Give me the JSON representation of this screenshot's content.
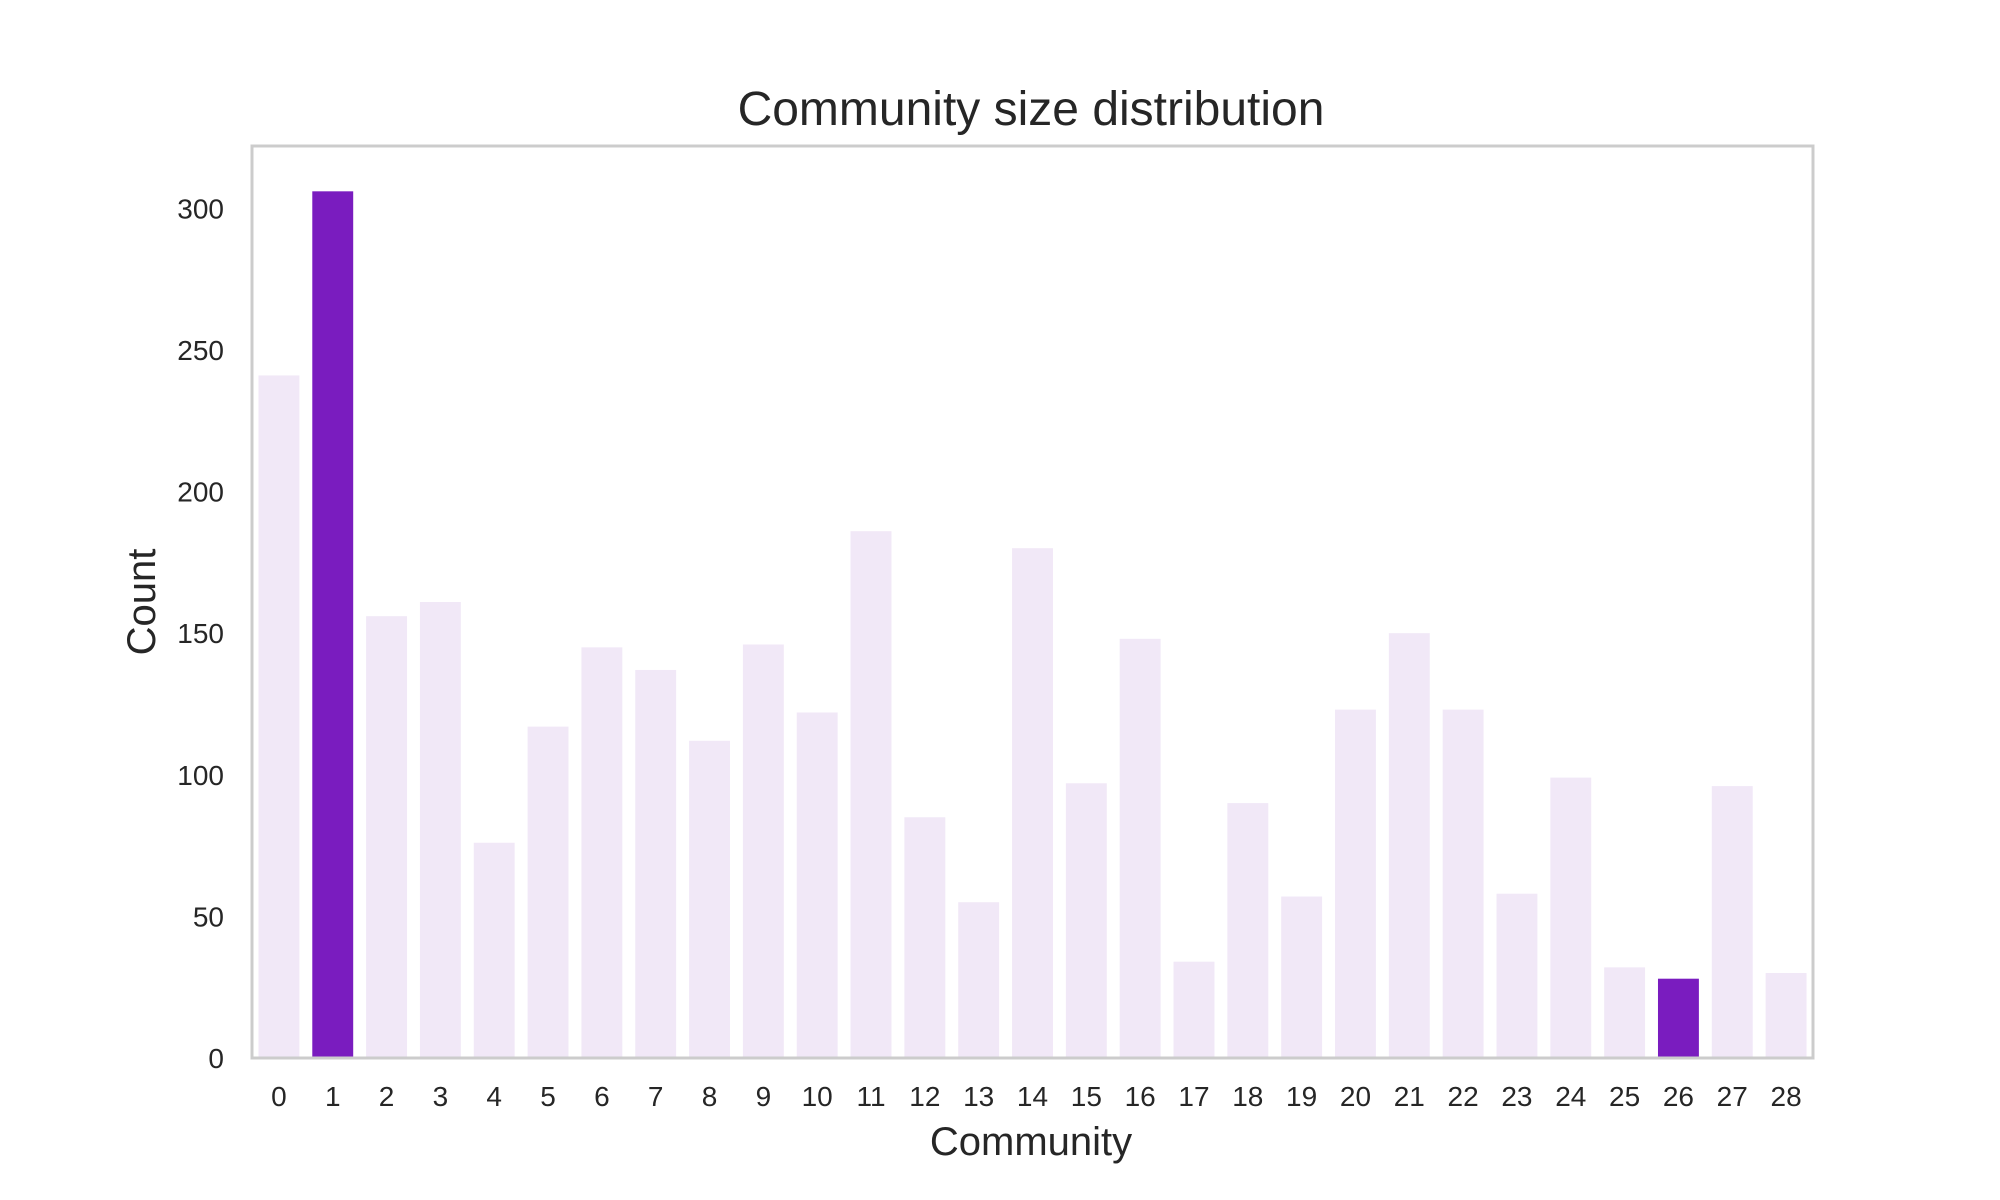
{
  "chart_data": {
    "type": "bar",
    "title": "Community size distribution",
    "xlabel": "Community",
    "ylabel": "Count",
    "categories": [
      "0",
      "1",
      "2",
      "3",
      "4",
      "5",
      "6",
      "7",
      "8",
      "9",
      "10",
      "11",
      "12",
      "13",
      "14",
      "15",
      "16",
      "17",
      "18",
      "19",
      "20",
      "21",
      "22",
      "23",
      "24",
      "25",
      "26",
      "27",
      "28"
    ],
    "values": [
      241,
      306,
      156,
      161,
      76,
      117,
      145,
      137,
      112,
      146,
      122,
      186,
      85,
      55,
      180,
      97,
      148,
      34,
      90,
      57,
      123,
      150,
      123,
      58,
      99,
      32,
      28,
      96,
      30
    ],
    "highlighted": [
      "1",
      "26"
    ],
    "yticks": [
      0,
      50,
      100,
      150,
      200,
      250,
      300
    ],
    "ylim": [
      0,
      322
    ],
    "grid": false,
    "colors": {
      "bar": "#f1e8f7",
      "highlight": "#7a1cbf",
      "frame": "#cccccc",
      "text": "#262626"
    }
  }
}
